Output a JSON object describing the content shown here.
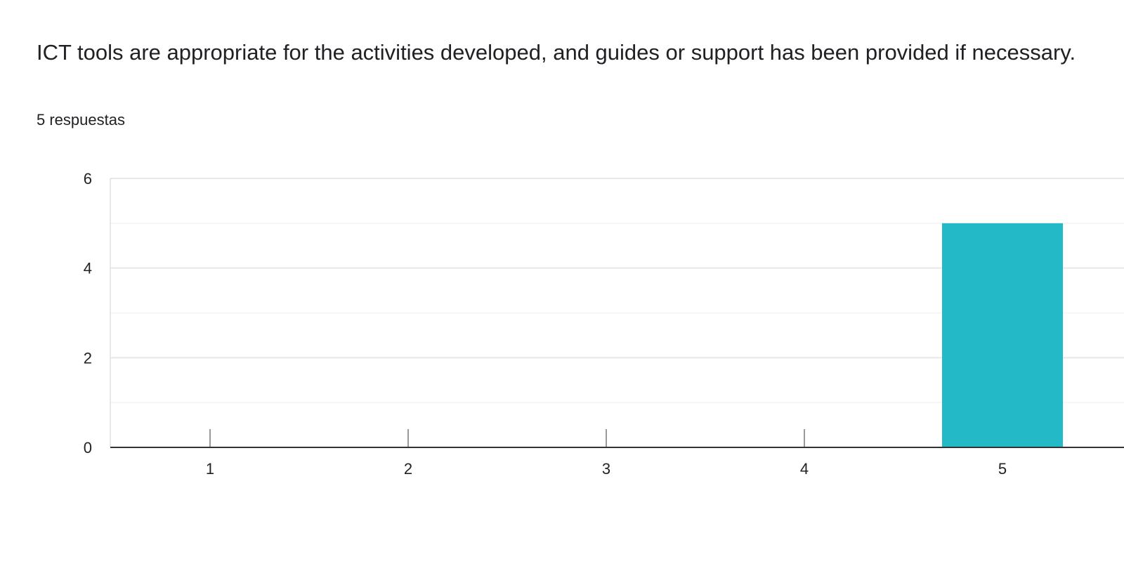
{
  "question": {
    "title": "ICT tools are appropriate for the activities developed, and guides or support has been provided if necessary.",
    "responses": "5 respuestas"
  },
  "colors": {
    "bar": "#24b9c7",
    "grid_major": "#e8e8e8",
    "grid_minor": "#f3f3f3",
    "axis": "#333333",
    "tick": "#999999"
  },
  "chart_data": {
    "type": "bar",
    "categories": [
      "1",
      "2",
      "3",
      "4",
      "5"
    ],
    "values": [
      0,
      0,
      0,
      0,
      5
    ],
    "y_ticks": [
      "0",
      "2",
      "4",
      "6"
    ],
    "ylim": [
      0,
      6
    ],
    "grid": true,
    "legend": "none"
  }
}
